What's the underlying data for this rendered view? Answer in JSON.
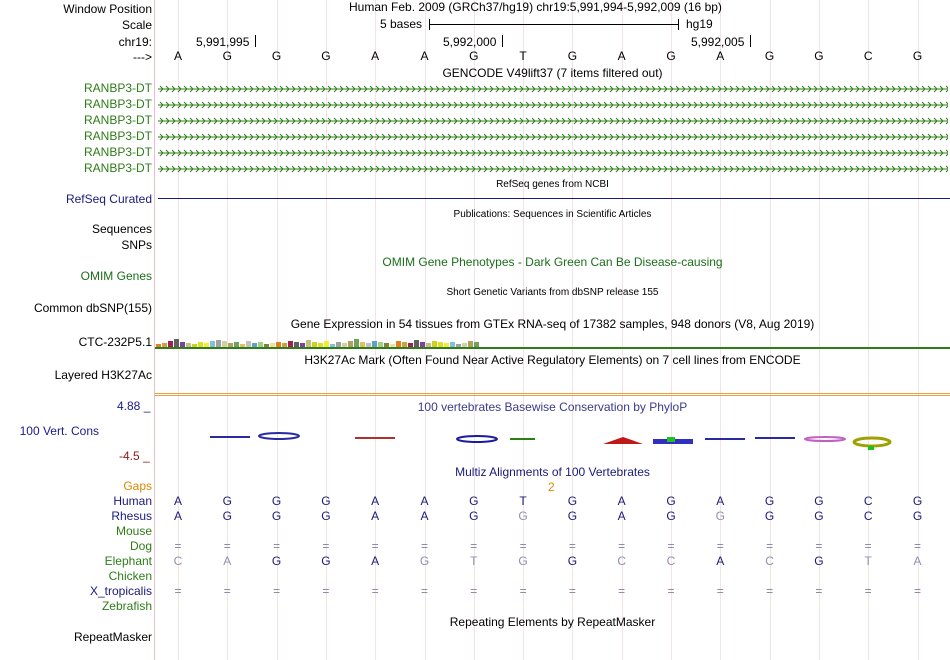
{
  "header": {
    "window_position_label": "Window Position",
    "position_text": "Human Feb. 2009 (GRCh37/hg19)   chr19:5,991,994-5,992,009 (16 bp)",
    "scale_label": "Scale",
    "scale_text": "5 bases",
    "assembly": "hg19",
    "chrom_label": "chr19:",
    "ticks": [
      "5,991,995",
      "5,992,000",
      "5,992,005"
    ],
    "arrow_label": "--->"
  },
  "sequence": [
    "A",
    "G",
    "G",
    "G",
    "A",
    "A",
    "G",
    "T",
    "G",
    "A",
    "G",
    "A",
    "G",
    "G",
    "C",
    "G"
  ],
  "gencode": {
    "title": "GENCODE V49lift37 (7 items filtered out)",
    "items": [
      "RANBP3-DT",
      "RANBP3-DT",
      "RANBP3-DT",
      "RANBP3-DT",
      "RANBP3-DT",
      "RANBP3-DT"
    ],
    "color": "#2e7d18"
  },
  "refseq": {
    "label": "RefSeq Curated",
    "title": "RefSeq genes from NCBI",
    "color": "#1a1a7a"
  },
  "publications": {
    "title": "Publications: Sequences in Scientific Articles",
    "label": "Sequences"
  },
  "snps_label": "SNPs",
  "omim": {
    "label": "OMIM Genes",
    "title": "OMIM Gene Phenotypes - Dark Green Can Be Disease-causing",
    "color": "#1a6e1a"
  },
  "dbsnp": {
    "label": "Common dbSNP(155)",
    "title": "Short Genetic Variants from dbSNP release 155"
  },
  "gtex": {
    "title": "Gene Expression in 54 tissues from GTEx RNA-seq of 17382 samples, 948 donors (V8, Aug 2019)",
    "label": "CTC-232P5.1"
  },
  "h3k27ac": {
    "title": "H3K27Ac Mark (Often Found Near Active Regulatory Elements) on 7 cell lines from ENCODE",
    "label": "Layered H3K27Ac"
  },
  "conservation": {
    "title": "100 vertebrates Basewise Conservation by PhyloP",
    "label": "100 Vert. Cons",
    "max": "4.88 _",
    "min": "-4.5 _",
    "color": "#1a1a8a",
    "min_color": "#8b1a1a"
  },
  "multiz": {
    "title": "Multiz Alignments of 100 Vertebrates",
    "gaps_label": "Gaps",
    "gap_count": "2",
    "species": [
      {
        "name": "Human",
        "color": "#1a1a7a",
        "row": [
          "A",
          "G",
          "G",
          "G",
          "A",
          "A",
          "G",
          "T",
          "G",
          "A",
          "G",
          "A",
          "G",
          "G",
          "C",
          "G"
        ]
      },
      {
        "name": "Rhesus",
        "color": "#1a1a7a",
        "row": [
          "A",
          "G",
          "G",
          "G",
          "A",
          "A",
          "G",
          "G",
          "G",
          "A",
          "G",
          "G",
          "G",
          "G",
          "C",
          "G"
        ]
      },
      {
        "name": "Mouse",
        "color": "#2e7d18",
        "row": []
      },
      {
        "name": "Dog",
        "color": "#2e7d18",
        "row": [
          "=",
          "=",
          "=",
          "=",
          "=",
          "=",
          "=",
          "=",
          "=",
          "=",
          "=",
          "=",
          "=",
          "=",
          "=",
          "="
        ]
      },
      {
        "name": "Elephant",
        "color": "#2e7d18",
        "row": [
          "C",
          "A",
          "G",
          "G",
          "A",
          "G",
          "T",
          "G",
          "G",
          "C",
          "C",
          "A",
          "C",
          "G",
          "T",
          "A"
        ]
      },
      {
        "name": "Chicken",
        "color": "#2e7d18",
        "row": []
      },
      {
        "name": "X_tropicalis",
        "color": "#1a1a7a",
        "row": [
          "=",
          "=",
          "=",
          "=",
          "=",
          "=",
          "=",
          "=",
          "=",
          "=",
          "=",
          "=",
          "=",
          "=",
          "=",
          "="
        ]
      },
      {
        "name": "Zebrafish",
        "color": "#2e7d18",
        "row": []
      }
    ]
  },
  "repeatmasker": {
    "title": "Repeating Elements by RepeatMasker",
    "label": "RepeatMasker"
  },
  "colors": {
    "gap_orange": "#d88a00",
    "h3k27_line": "#e8a040",
    "gtex_line": "#2e7d18"
  }
}
